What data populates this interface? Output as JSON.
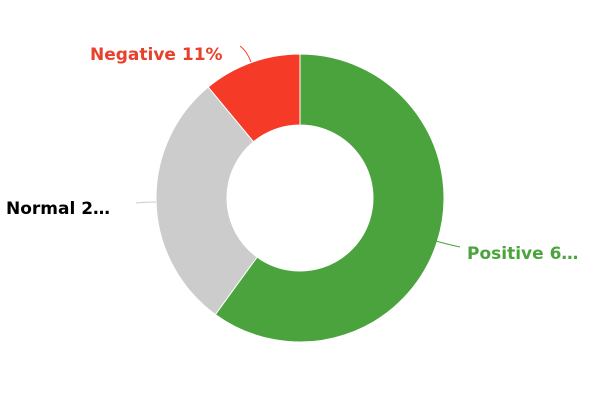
{
  "chart_data": {
    "type": "pie",
    "donut": true,
    "title": "",
    "slices": [
      {
        "label": "Positive",
        "value": 60,
        "display_label": "Positive 6…",
        "color": "#4aa33c",
        "label_color": "#4aa33c"
      },
      {
        "label": "Normal",
        "value": 29,
        "display_label": "Normal 2…",
        "color": "#cccccc",
        "label_color": "#000000"
      },
      {
        "label": "Negative",
        "value": 11,
        "display_label": "Negative 11%",
        "color": "#f53a27",
        "label_color": "#e8402a"
      }
    ]
  }
}
